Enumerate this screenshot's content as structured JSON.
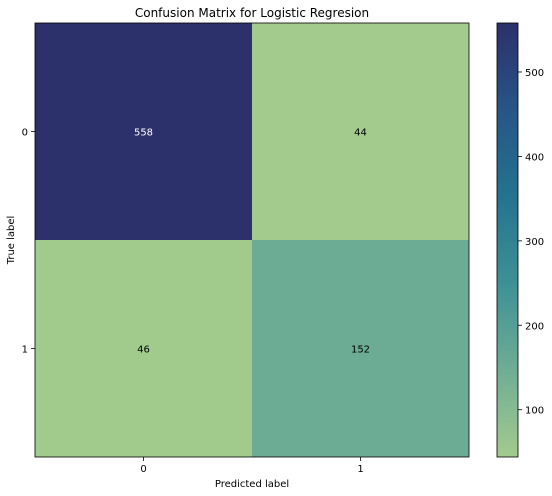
{
  "chart_data": {
    "type": "heatmap",
    "title": "Confusion Matrix for Logistic Regresion",
    "xlabel": "Predicted label",
    "ylabel": "True label",
    "x_categories": [
      "0",
      "1"
    ],
    "y_categories": [
      "0",
      "1"
    ],
    "values": [
      [
        558,
        44
      ],
      [
        46,
        152
      ]
    ],
    "colorbar": {
      "ticks": [
        100,
        200,
        300,
        400,
        500
      ],
      "range": [
        44,
        558
      ]
    },
    "colormap": "crest",
    "grid": false
  }
}
